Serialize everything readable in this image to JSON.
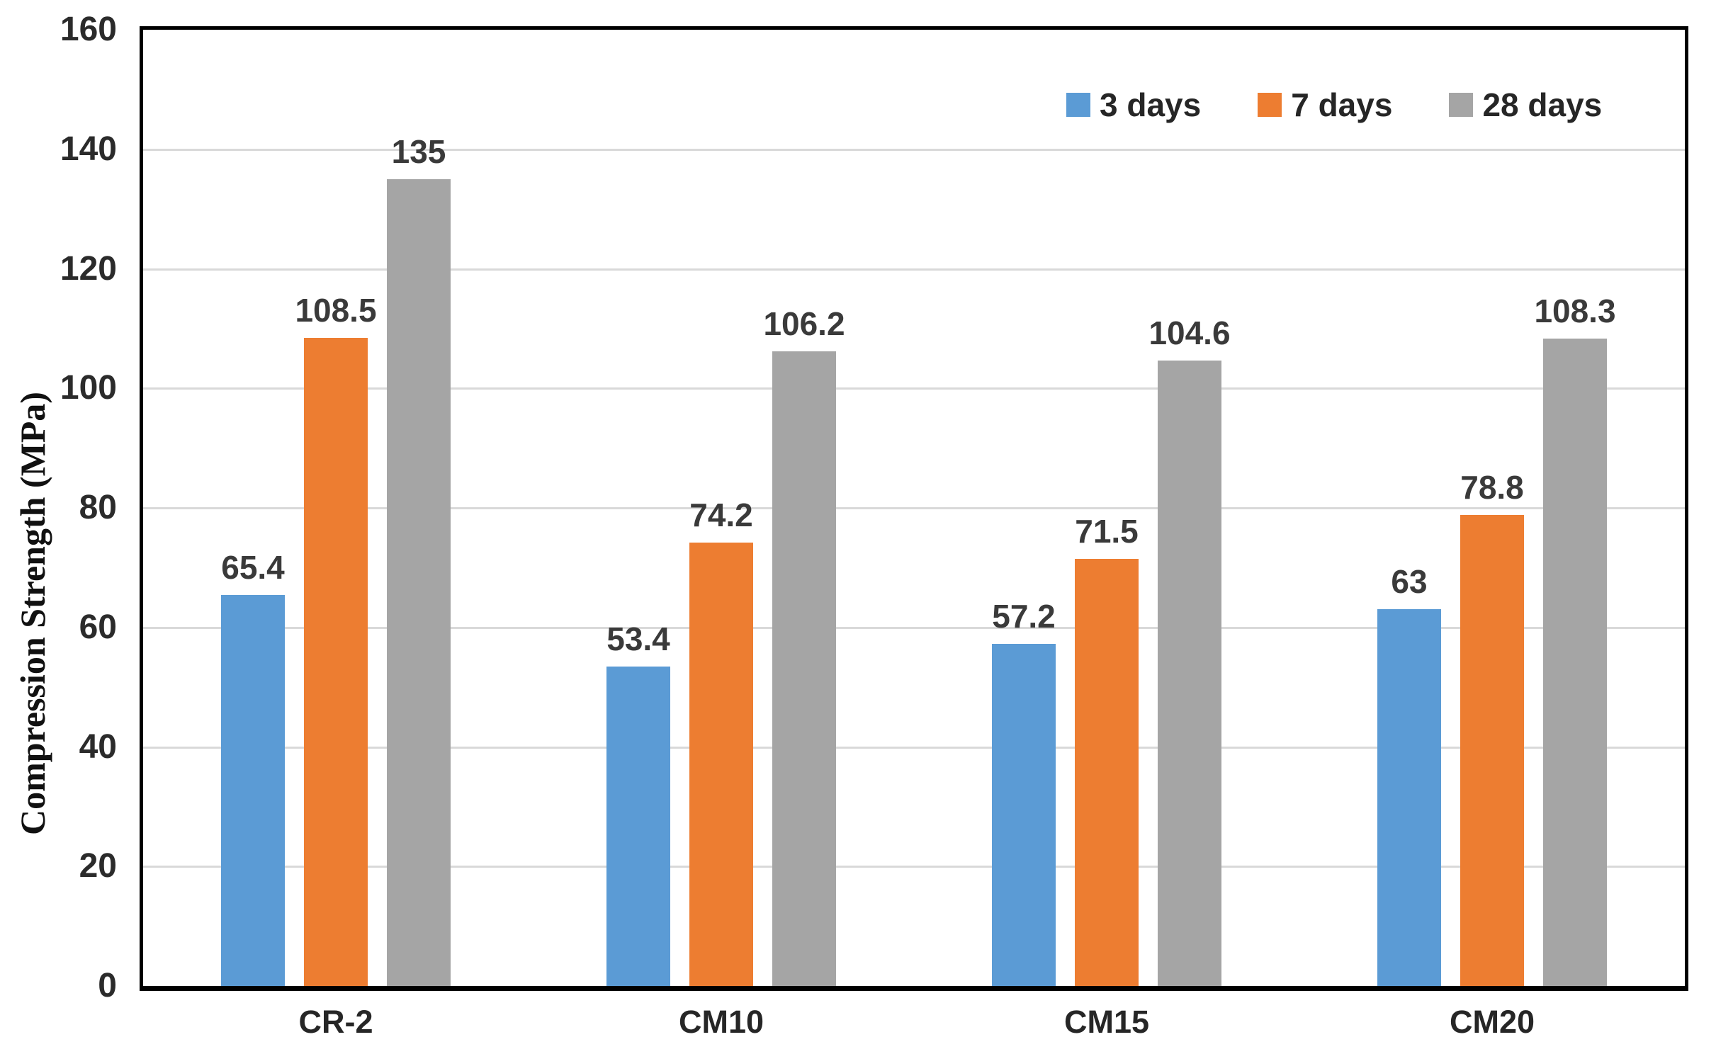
{
  "chart_data": {
    "type": "bar",
    "ylabel": "Compression Strength (MPa)",
    "categories": [
      "CR-2",
      "CM10",
      "CM15",
      "CM20"
    ],
    "series": [
      {
        "name": "3 days",
        "color": "#5B9BD5",
        "values": [
          65.4,
          53.4,
          57.2,
          63
        ],
        "labels": [
          "65.4",
          "53.4",
          "57.2",
          "63"
        ]
      },
      {
        "name": "7 days",
        "color": "#ED7D31",
        "values": [
          108.5,
          74.2,
          71.5,
          78.8
        ],
        "labels": [
          "108.5",
          "74.2",
          "71.5",
          "78.8"
        ]
      },
      {
        "name": "28 days",
        "color": "#A5A5A5",
        "values": [
          135,
          106.2,
          104.6,
          108.3
        ],
        "labels": [
          "135",
          "106.2",
          "104.6",
          "108.3"
        ]
      }
    ],
    "ylim": [
      0,
      160
    ],
    "ytick_interval": 20,
    "yticks": [
      "0",
      "20",
      "40",
      "60",
      "80",
      "100",
      "120",
      "140",
      "160"
    ],
    "grid": true,
    "legend_position": "top-right",
    "colors": {
      "axis_border": "#000000",
      "gridline": "#D9D9D9",
      "tick_text": "#2B2B2B",
      "value_label_text": "#3A3A3A",
      "category_text": "#262626",
      "legend_text": "#262626",
      "background": "#FFFFFF"
    }
  }
}
